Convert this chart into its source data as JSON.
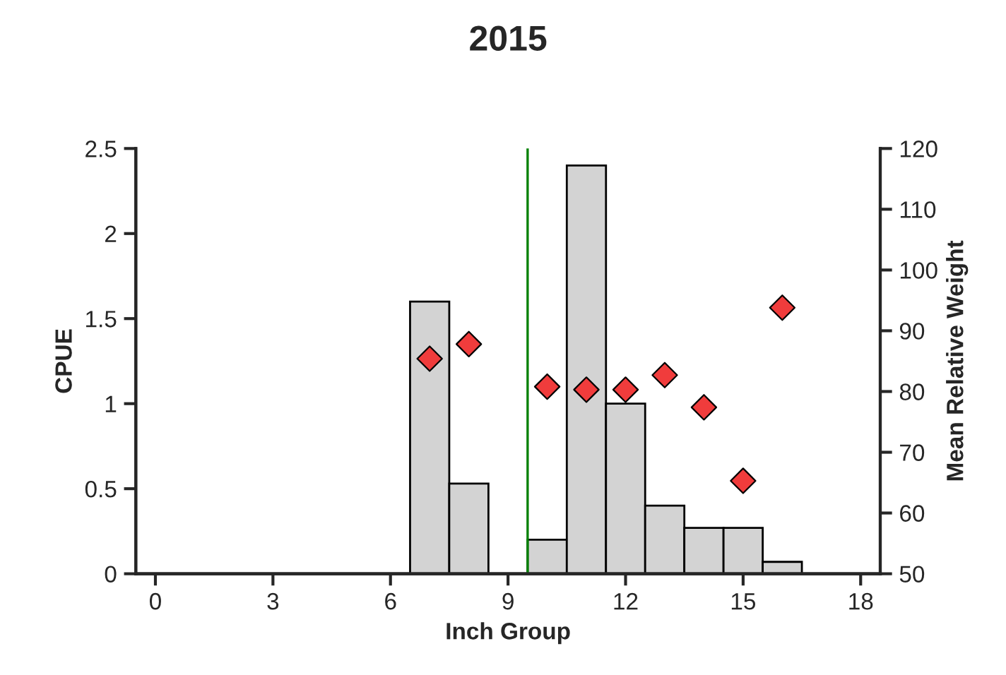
{
  "chart_data": {
    "type": "bar",
    "title": "2015",
    "xlabel": "Inch Group",
    "ylabel": "CPUE",
    "y2label": "Mean Relative Weight",
    "x": [
      7,
      8,
      10,
      11,
      12,
      13,
      14,
      15,
      16
    ],
    "series": [
      {
        "color": "#d3d3d3",
        "values": [
          1.6,
          0.53,
          0.2,
          2.4,
          1.0,
          0.4,
          0.27,
          0.27,
          0.07
        ]
      },
      {
        "type": "scatter",
        "axis": "y2",
        "color": "#f03c3c",
        "marker": "diamond",
        "values": [
          85.4,
          87.8,
          80.8,
          80.3,
          80.3,
          82.7,
          77.4,
          65.3,
          93.8
        ]
      }
    ],
    "xlim": [
      -0.5,
      18.5
    ],
    "xticks": [
      0,
      3,
      6,
      9,
      12,
      15,
      18
    ],
    "ylim": [
      0,
      2.5
    ],
    "yticks": [
      0,
      0.5,
      1,
      1.5,
      2,
      2.5
    ],
    "y2lim": [
      50,
      120
    ],
    "y2ticks": [
      50,
      60,
      70,
      80,
      90,
      100,
      110,
      120
    ],
    "ref_lines": [
      {
        "axis": "x",
        "value": 9.5,
        "color": "#008000",
        "line_style": "solid"
      }
    ],
    "grid": false
  }
}
